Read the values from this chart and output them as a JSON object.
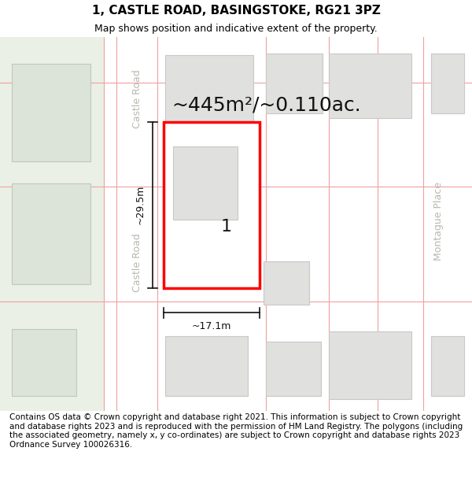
{
  "title": "1, CASTLE ROAD, BASINGSTOKE, RG21 3PZ",
  "subtitle": "Map shows position and indicative extent of the property.",
  "footer": "Contains OS data © Crown copyright and database right 2021. This information is subject to Crown copyright and database rights 2023 and is reproduced with the permission of HM Land Registry. The polygons (including the associated geometry, namely x, y co-ordinates) are subject to Crown copyright and database rights 2023 Ordnance Survey 100026316.",
  "area_label": "~445m²/~0.110ac.",
  "width_label": "~17.1m",
  "height_label": "~29.5m",
  "property_number": "1",
  "bg_color": "#ffffff",
  "map_bg": "#f2f2ee",
  "left_bg": "#eaf0e6",
  "road_color": "#ffffff",
  "road_border_color": "#f0a0a0",
  "block_color": "#e0e0de",
  "block_border_color": "#c8c8c8",
  "left_block_color": "#dce3d8",
  "left_block_border": "#c0c8ba",
  "highlight_color": "#ffffff",
  "highlight_border": "#ff0000",
  "road_label_color": "#b8b8b0",
  "dimension_color": "#111111",
  "area_label_color": "#111111",
  "title_fontsize": 11,
  "subtitle_fontsize": 9,
  "footer_fontsize": 7.5,
  "area_fontsize": 18,
  "label_fontsize": 9,
  "number_fontsize": 16,
  "road_label_fontsize": 9
}
